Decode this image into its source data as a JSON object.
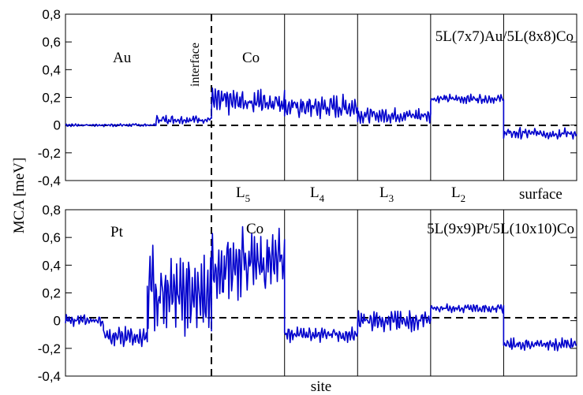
{
  "chart_data": [
    {
      "type": "line",
      "system": "5L(7x7)Au/5L(8x8)Co",
      "substrate": "Au",
      "film": "Co",
      "interface_label": "interface",
      "xlabel": "",
      "ylabel": "",
      "ylim": [
        -0.4,
        0.8
      ],
      "yticks": [
        -0.4,
        -0.2,
        0,
        0.2,
        0.4,
        0.6,
        0.8
      ],
      "ytick_labels": [
        "-0,4",
        "-0,2",
        "0",
        "0,2",
        "0,4",
        "0,6",
        "0,8"
      ],
      "xlim": [
        0,
        100
      ],
      "dividers": [
        50,
        75,
        100,
        125,
        150
      ],
      "region_labels": [
        {
          "base": "L",
          "sub": "5"
        },
        {
          "base": "L",
          "sub": "4"
        },
        {
          "base": "L",
          "sub": "3"
        },
        {
          "base": "L",
          "sub": "2"
        },
        {
          "base": "surface",
          "sub": ""
        }
      ],
      "series": [
        {
          "color": "#0000cc",
          "segments": [
            {
              "x": [
                0,
                31
              ],
              "mean": 0.0,
              "noise": 0.01
            },
            {
              "x": [
                31,
                50
              ],
              "mean": 0.04,
              "noise": 0.03
            },
            {
              "x": [
                50,
                75
              ],
              "mean": 0.17,
              "noise": 0.09
            },
            {
              "x": [
                75,
                100
              ],
              "mean": 0.13,
              "noise": 0.08
            },
            {
              "x": [
                100,
                125
              ],
              "mean": 0.07,
              "noise": 0.05
            },
            {
              "x": [
                125,
                150
              ],
              "mean": 0.19,
              "noise": 0.03
            },
            {
              "x": [
                150,
                175
              ],
              "mean": -0.06,
              "noise": 0.04
            }
          ]
        }
      ]
    },
    {
      "type": "line",
      "system": "5L(9x9)Pt/5L(10x10)Co",
      "substrate": "Pt",
      "film": "Co",
      "xlabel": "site",
      "ylabel": "MCA [meV]",
      "ylim": [
        -0.4,
        0.8
      ],
      "yticks": [
        -0.4,
        -0.2,
        0,
        0.2,
        0.4,
        0.6,
        0.8
      ],
      "ytick_labels": [
        "-0,4",
        "-0,2",
        "0",
        "0,2",
        "0,4",
        "0,6",
        "0,8"
      ],
      "xlim": [
        0,
        100
      ],
      "dividers": [
        50,
        75,
        100,
        125,
        150
      ],
      "series": [
        {
          "color": "#0000cc",
          "segments": [
            {
              "x": [
                0,
                13
              ],
              "mean": 0.0,
              "noise": 0.04
            },
            {
              "x": [
                13,
                28
              ],
              "mean": -0.12,
              "noise": 0.07
            },
            {
              "x": [
                28,
                50
              ],
              "mean": 0.2,
              "noise": 0.3
            },
            {
              "x": [
                50,
                75
              ],
              "mean": 0.42,
              "noise": 0.24
            },
            {
              "x": [
                75,
                100
              ],
              "mean": -0.1,
              "noise": 0.05
            },
            {
              "x": [
                100,
                125
              ],
              "mean": 0.0,
              "noise": 0.07
            },
            {
              "x": [
                125,
                150
              ],
              "mean": 0.09,
              "noise": 0.03
            },
            {
              "x": [
                150,
                175
              ],
              "mean": -0.17,
              "noise": 0.04
            }
          ]
        }
      ]
    }
  ]
}
